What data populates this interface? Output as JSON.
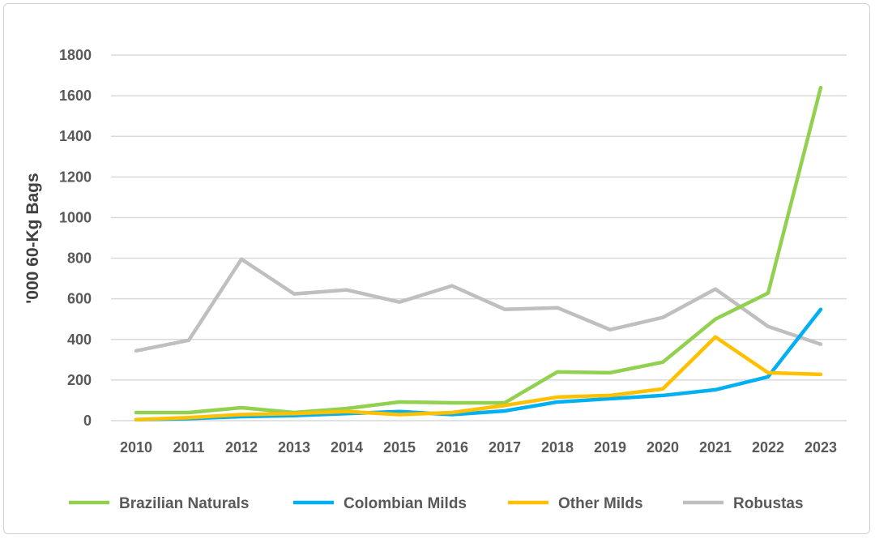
{
  "chart_data": {
    "type": "line",
    "title": "",
    "xlabel": "",
    "ylabel": "'000 60-Kg Bags",
    "ylim": [
      0,
      1800
    ],
    "yticks": [
      0,
      200,
      400,
      600,
      800,
      1000,
      1200,
      1400,
      1600,
      1800
    ],
    "grid": true,
    "legend_position": "bottom",
    "x": [
      "2010",
      "2011",
      "2012",
      "2013",
      "2014",
      "2015",
      "2016",
      "2017",
      "2018",
      "2019",
      "2020",
      "2021",
      "2022",
      "2023"
    ],
    "series": [
      {
        "name": "Brazilian Naturals",
        "color": "#92D050",
        "values": [
          40,
          40,
          64,
          40,
          60,
          92,
          88,
          88,
          240,
          236,
          288,
          500,
          628,
          1640
        ]
      },
      {
        "name": "Colombian Milds",
        "color": "#00B0F0",
        "values": [
          5,
          10,
          20,
          25,
          35,
          45,
          30,
          48,
          92,
          108,
          124,
          152,
          216,
          548
        ]
      },
      {
        "name": "Other Milds",
        "color": "#FFC000",
        "values": [
          5,
          15,
          30,
          35,
          45,
          30,
          40,
          75,
          116,
          124,
          156,
          412,
          236,
          228
        ]
      },
      {
        "name": "Robustas",
        "color": "#BFBFBF",
        "values": [
          344,
          396,
          795,
          624,
          644,
          584,
          664,
          548,
          556,
          448,
          508,
          648,
          464,
          376
        ]
      }
    ]
  }
}
